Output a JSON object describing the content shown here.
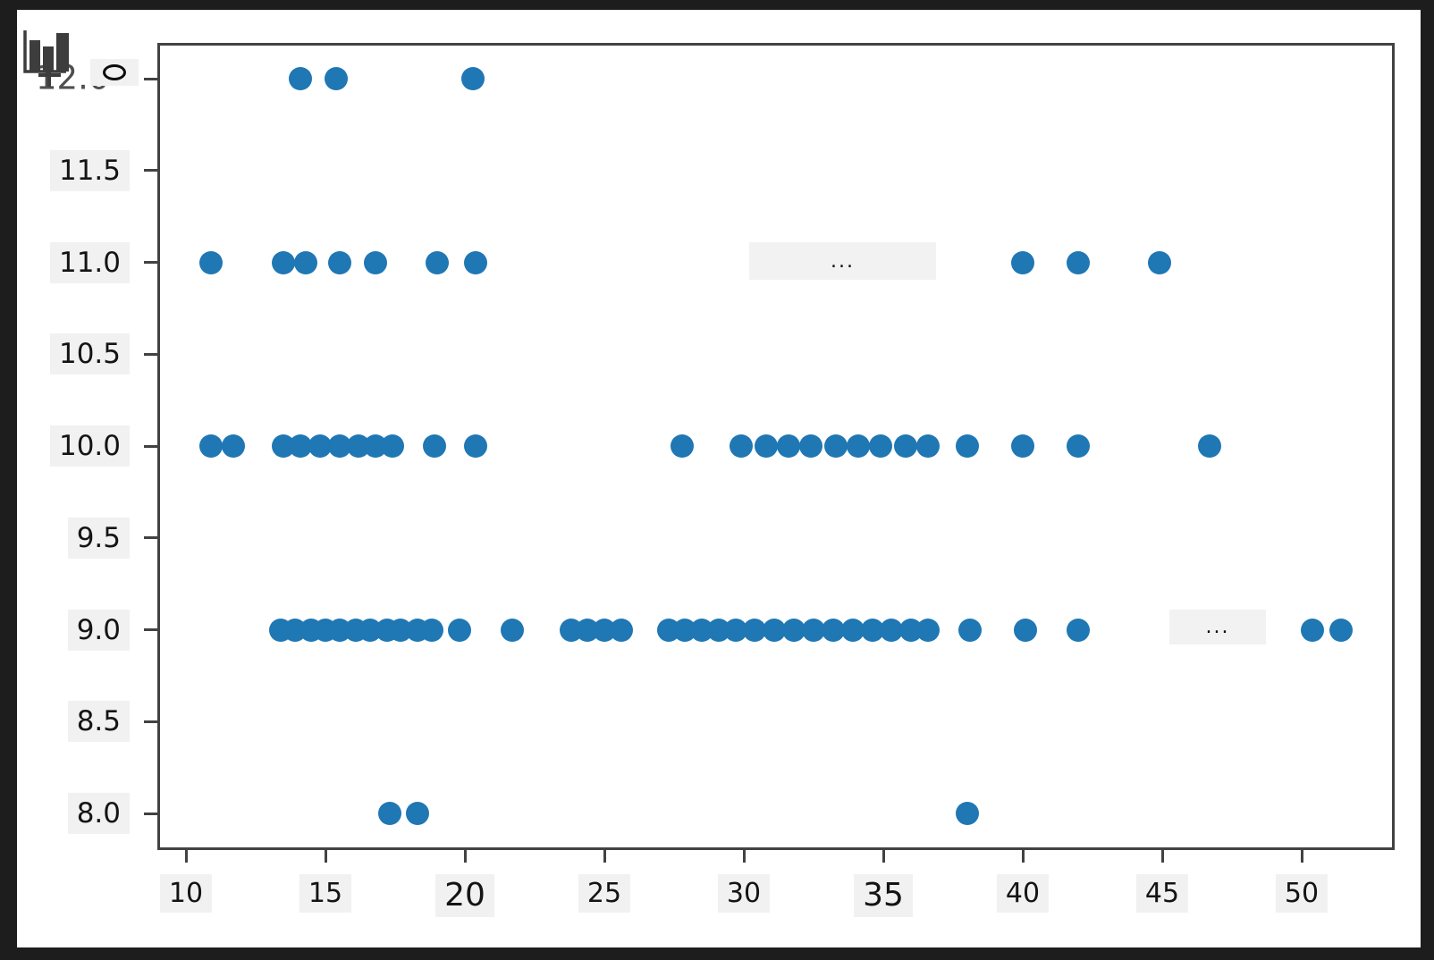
{
  "chart_data": {
    "type": "scatter",
    "title": "",
    "xlabel": "",
    "ylabel": "",
    "grid": false,
    "legend": null,
    "xlim": [
      9.0,
      53.3
    ],
    "ylim": [
      7.8,
      12.2
    ],
    "x_ticks": [
      {
        "v": 10,
        "label": "10",
        "large": false
      },
      {
        "v": 15,
        "label": "15",
        "large": false
      },
      {
        "v": 20,
        "label": "20",
        "large": true
      },
      {
        "v": 25,
        "label": "25",
        "large": false
      },
      {
        "v": 30,
        "label": "30",
        "large": false
      },
      {
        "v": 35,
        "label": "35",
        "large": true
      },
      {
        "v": 40,
        "label": "40",
        "large": false
      },
      {
        "v": 45,
        "label": "45",
        "large": false
      },
      {
        "v": 50,
        "label": "50",
        "large": false
      }
    ],
    "y_ticks": [
      {
        "v": 12.0,
        "label": "12.0",
        "special": true
      },
      {
        "v": 11.5,
        "label": "11.5",
        "special": false
      },
      {
        "v": 11.0,
        "label": "11.0",
        "special": false
      },
      {
        "v": 10.5,
        "label": "10.5",
        "special": false
      },
      {
        "v": 10.0,
        "label": "10.0",
        "special": false
      },
      {
        "v": 9.5,
        "label": "9.5",
        "special": false
      },
      {
        "v": 9.0,
        "label": "9.0",
        "special": false
      },
      {
        "v": 8.5,
        "label": "8.5",
        "special": false
      },
      {
        "v": 8.0,
        "label": "8.0",
        "special": false
      }
    ],
    "point_color": "#1f77b4",
    "points": [
      [
        14.1,
        12
      ],
      [
        15.4,
        12
      ],
      [
        20.3,
        12
      ],
      [
        10.9,
        11
      ],
      [
        13.5,
        11
      ],
      [
        14.3,
        11
      ],
      [
        15.5,
        11
      ],
      [
        16.8,
        11
      ],
      [
        19.0,
        11
      ],
      [
        20.4,
        11
      ],
      [
        40.0,
        11
      ],
      [
        42.0,
        11
      ],
      [
        44.9,
        11
      ],
      [
        10.9,
        10
      ],
      [
        11.7,
        10
      ],
      [
        13.5,
        10
      ],
      [
        14.1,
        10
      ],
      [
        14.8,
        10
      ],
      [
        15.5,
        10
      ],
      [
        16.2,
        10
      ],
      [
        16.8,
        10
      ],
      [
        17.4,
        10
      ],
      [
        18.9,
        10
      ],
      [
        20.4,
        10
      ],
      [
        27.8,
        10
      ],
      [
        29.9,
        10
      ],
      [
        30.8,
        10
      ],
      [
        31.6,
        10
      ],
      [
        32.4,
        10
      ],
      [
        33.3,
        10
      ],
      [
        34.1,
        10
      ],
      [
        34.9,
        10
      ],
      [
        35.8,
        10
      ],
      [
        36.6,
        10
      ],
      [
        38.0,
        10
      ],
      [
        40.0,
        10
      ],
      [
        42.0,
        10
      ],
      [
        46.7,
        10
      ],
      [
        13.4,
        9
      ],
      [
        13.9,
        9
      ],
      [
        14.5,
        9
      ],
      [
        15.0,
        9
      ],
      [
        15.5,
        9
      ],
      [
        16.1,
        9
      ],
      [
        16.6,
        9
      ],
      [
        17.2,
        9
      ],
      [
        17.7,
        9
      ],
      [
        18.3,
        9
      ],
      [
        18.8,
        9
      ],
      [
        19.8,
        9
      ],
      [
        21.7,
        9
      ],
      [
        23.8,
        9
      ],
      [
        24.4,
        9
      ],
      [
        25.0,
        9
      ],
      [
        25.6,
        9
      ],
      [
        27.3,
        9
      ],
      [
        27.9,
        9
      ],
      [
        28.5,
        9
      ],
      [
        29.1,
        9
      ],
      [
        29.7,
        9
      ],
      [
        30.4,
        9
      ],
      [
        31.1,
        9
      ],
      [
        31.8,
        9
      ],
      [
        32.5,
        9
      ],
      [
        33.2,
        9
      ],
      [
        33.9,
        9
      ],
      [
        34.6,
        9
      ],
      [
        35.3,
        9
      ],
      [
        36.0,
        9
      ],
      [
        36.6,
        9
      ],
      [
        38.1,
        9
      ],
      [
        40.1,
        9
      ],
      [
        42.0,
        9
      ],
      [
        50.4,
        9
      ],
      [
        51.4,
        9
      ],
      [
        17.3,
        8
      ],
      [
        18.3,
        8
      ],
      [
        38.0,
        8
      ]
    ]
  },
  "overlays": {
    "ellipsis_row11": "...",
    "ellipsis_row9": "...",
    "marker_o": "o",
    "chart_icon": "bar-chart-icon"
  },
  "colors": {
    "frame": "#1d1d1d",
    "figure_bg": "#ffffff",
    "spine": "#424242",
    "label_bg": "#f1f1f1",
    "label_text": "#141414",
    "dot": "#1f77b4",
    "muted_label": "#4f4f4f",
    "icon": "#3d3d3d"
  }
}
